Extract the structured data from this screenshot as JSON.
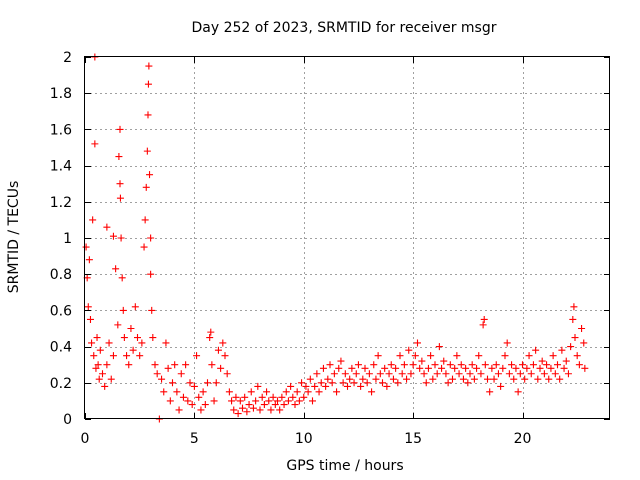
{
  "chart_data": {
    "type": "scatter",
    "title": "Day 252 of 2023, SRMTID for receiver msgr",
    "xlabel": "GPS time / hours",
    "ylabel": "SRMTID / TECUs",
    "xlim": [
      0,
      24
    ],
    "ylim": [
      0,
      2
    ],
    "x_ticks": [
      0,
      5,
      10,
      15,
      20
    ],
    "x_tick_labels": [
      "0",
      "5",
      "10",
      "15",
      "20"
    ],
    "y_ticks": [
      0,
      0.2,
      0.4,
      0.6,
      0.8,
      1,
      1.2,
      1.4,
      1.6,
      1.8,
      2
    ],
    "y_tick_labels": [
      "0",
      "0.2",
      "0.4",
      "0.6",
      "0.8",
      "1",
      "1.2",
      "1.4",
      "1.6",
      "1.8",
      "2"
    ],
    "grid": true,
    "marker": "+",
    "color": "#ff0000",
    "series": [
      {
        "name": "SRMTID",
        "points": [
          [
            0.05,
            0.95
          ],
          [
            0.1,
            0.78
          ],
          [
            0.15,
            0.62
          ],
          [
            0.2,
            0.88
          ],
          [
            0.25,
            0.55
          ],
          [
            0.3,
            0.42
          ],
          [
            0.35,
            1.1
          ],
          [
            0.4,
            0.35
          ],
          [
            0.45,
            2.0
          ],
          [
            0.45,
            1.52
          ],
          [
            0.5,
            0.28
          ],
          [
            0.55,
            0.45
          ],
          [
            0.6,
            0.3
          ],
          [
            0.65,
            0.22
          ],
          [
            0.7,
            0.38
          ],
          [
            0.8,
            0.25
          ],
          [
            0.9,
            0.18
          ],
          [
            1.0,
            1.06
          ],
          [
            1.0,
            0.3
          ],
          [
            1.1,
            0.42
          ],
          [
            1.2,
            0.22
          ],
          [
            1.3,
            1.01
          ],
          [
            1.3,
            0.35
          ],
          [
            1.4,
            0.83
          ],
          [
            1.5,
            0.52
          ],
          [
            1.55,
            1.45
          ],
          [
            1.6,
            1.6
          ],
          [
            1.6,
            1.3
          ],
          [
            1.62,
            1.22
          ],
          [
            1.65,
            1.0
          ],
          [
            1.7,
            0.78
          ],
          [
            1.75,
            0.6
          ],
          [
            1.8,
            0.45
          ],
          [
            1.9,
            0.35
          ],
          [
            2.0,
            0.3
          ],
          [
            2.1,
            0.5
          ],
          [
            2.2,
            0.38
          ],
          [
            2.3,
            0.62
          ],
          [
            2.4,
            0.45
          ],
          [
            2.5,
            0.35
          ],
          [
            2.6,
            0.42
          ],
          [
            2.7,
            0.95
          ],
          [
            2.75,
            1.1
          ],
          [
            2.8,
            1.28
          ],
          [
            2.85,
            1.48
          ],
          [
            2.88,
            1.68
          ],
          [
            2.9,
            1.85
          ],
          [
            2.92,
            1.95
          ],
          [
            2.95,
            1.35
          ],
          [
            3.0,
            1.0
          ],
          [
            3.0,
            0.8
          ],
          [
            3.05,
            0.6
          ],
          [
            3.1,
            0.45
          ],
          [
            3.2,
            0.3
          ],
          [
            3.3,
            0.25
          ],
          [
            3.4,
            0.0
          ],
          [
            3.5,
            0.22
          ],
          [
            3.6,
            0.15
          ],
          [
            3.7,
            0.42
          ],
          [
            3.8,
            0.28
          ],
          [
            3.9,
            0.1
          ],
          [
            4.0,
            0.2
          ],
          [
            4.1,
            0.3
          ],
          [
            4.2,
            0.15
          ],
          [
            4.3,
            0.05
          ],
          [
            4.4,
            0.25
          ],
          [
            4.5,
            0.12
          ],
          [
            4.6,
            0.3
          ],
          [
            4.7,
            0.1
          ],
          [
            4.8,
            0.2
          ],
          [
            4.9,
            0.08
          ],
          [
            5.0,
            0.18
          ],
          [
            5.1,
            0.35
          ],
          [
            5.2,
            0.12
          ],
          [
            5.3,
            0.05
          ],
          [
            5.4,
            0.15
          ],
          [
            5.5,
            0.08
          ],
          [
            5.6,
            0.2
          ],
          [
            5.7,
            0.45
          ],
          [
            5.75,
            0.48
          ],
          [
            5.8,
            0.3
          ],
          [
            5.9,
            0.1
          ],
          [
            6.0,
            0.2
          ],
          [
            6.1,
            0.38
          ],
          [
            6.2,
            0.28
          ],
          [
            6.3,
            0.42
          ],
          [
            6.4,
            0.35
          ],
          [
            6.5,
            0.25
          ],
          [
            6.6,
            0.15
          ],
          [
            6.7,
            0.1
          ],
          [
            6.8,
            0.05
          ],
          [
            6.9,
            0.12
          ],
          [
            7.0,
            0.03
          ],
          [
            7.1,
            0.1
          ],
          [
            7.2,
            0.06
          ],
          [
            7.3,
            0.12
          ],
          [
            7.4,
            0.04
          ],
          [
            7.5,
            0.08
          ],
          [
            7.6,
            0.15
          ],
          [
            7.7,
            0.06
          ],
          [
            7.8,
            0.1
          ],
          [
            7.9,
            0.18
          ],
          [
            8.0,
            0.05
          ],
          [
            8.1,
            0.12
          ],
          [
            8.2,
            0.08
          ],
          [
            8.3,
            0.15
          ],
          [
            8.4,
            0.1
          ],
          [
            8.5,
            0.05
          ],
          [
            8.6,
            0.12
          ],
          [
            8.7,
            0.08
          ],
          [
            8.8,
            0.1
          ],
          [
            8.9,
            0.05
          ],
          [
            9.0,
            0.12
          ],
          [
            9.1,
            0.08
          ],
          [
            9.2,
            0.15
          ],
          [
            9.3,
            0.1
          ],
          [
            9.4,
            0.18
          ],
          [
            9.5,
            0.12
          ],
          [
            9.6,
            0.08
          ],
          [
            9.7,
            0.15
          ],
          [
            9.8,
            0.1
          ],
          [
            9.9,
            0.2
          ],
          [
            10.0,
            0.12
          ],
          [
            10.1,
            0.18
          ],
          [
            10.2,
            0.15
          ],
          [
            10.3,
            0.22
          ],
          [
            10.4,
            0.1
          ],
          [
            10.5,
            0.18
          ],
          [
            10.6,
            0.25
          ],
          [
            10.7,
            0.15
          ],
          [
            10.8,
            0.2
          ],
          [
            10.9,
            0.28
          ],
          [
            11.0,
            0.18
          ],
          [
            11.1,
            0.22
          ],
          [
            11.2,
            0.3
          ],
          [
            11.3,
            0.2
          ],
          [
            11.4,
            0.25
          ],
          [
            11.5,
            0.15
          ],
          [
            11.6,
            0.28
          ],
          [
            11.7,
            0.32
          ],
          [
            11.8,
            0.2
          ],
          [
            11.9,
            0.25
          ],
          [
            12.0,
            0.18
          ],
          [
            12.1,
            0.22
          ],
          [
            12.2,
            0.28
          ],
          [
            12.3,
            0.2
          ],
          [
            12.4,
            0.25
          ],
          [
            12.5,
            0.3
          ],
          [
            12.6,
            0.18
          ],
          [
            12.7,
            0.22
          ],
          [
            12.8,
            0.28
          ],
          [
            12.9,
            0.2
          ],
          [
            13.0,
            0.25
          ],
          [
            13.1,
            0.15
          ],
          [
            13.2,
            0.3
          ],
          [
            13.3,
            0.22
          ],
          [
            13.4,
            0.35
          ],
          [
            13.5,
            0.25
          ],
          [
            13.6,
            0.2
          ],
          [
            13.7,
            0.28
          ],
          [
            13.8,
            0.18
          ],
          [
            13.9,
            0.25
          ],
          [
            14.0,
            0.3
          ],
          [
            14.1,
            0.22
          ],
          [
            14.2,
            0.28
          ],
          [
            14.3,
            0.2
          ],
          [
            14.4,
            0.35
          ],
          [
            14.5,
            0.25
          ],
          [
            14.6,
            0.3
          ],
          [
            14.7,
            0.22
          ],
          [
            14.8,
            0.38
          ],
          [
            14.9,
            0.25
          ],
          [
            15.0,
            0.3
          ],
          [
            15.1,
            0.35
          ],
          [
            15.2,
            0.42
          ],
          [
            15.3,
            0.28
          ],
          [
            15.4,
            0.32
          ],
          [
            15.5,
            0.25
          ],
          [
            15.6,
            0.2
          ],
          [
            15.7,
            0.28
          ],
          [
            15.8,
            0.35
          ],
          [
            15.9,
            0.22
          ],
          [
            16.0,
            0.3
          ],
          [
            16.1,
            0.25
          ],
          [
            16.2,
            0.4
          ],
          [
            16.3,
            0.28
          ],
          [
            16.4,
            0.32
          ],
          [
            16.5,
            0.25
          ],
          [
            16.6,
            0.2
          ],
          [
            16.7,
            0.3
          ],
          [
            16.8,
            0.22
          ],
          [
            16.9,
            0.28
          ],
          [
            17.0,
            0.35
          ],
          [
            17.1,
            0.25
          ],
          [
            17.2,
            0.3
          ],
          [
            17.3,
            0.22
          ],
          [
            17.4,
            0.28
          ],
          [
            17.5,
            0.2
          ],
          [
            17.6,
            0.25
          ],
          [
            17.7,
            0.3
          ],
          [
            17.8,
            0.22
          ],
          [
            17.9,
            0.28
          ],
          [
            18.0,
            0.35
          ],
          [
            18.1,
            0.25
          ],
          [
            18.2,
            0.52
          ],
          [
            18.25,
            0.55
          ],
          [
            18.3,
            0.3
          ],
          [
            18.4,
            0.22
          ],
          [
            18.5,
            0.15
          ],
          [
            18.6,
            0.28
          ],
          [
            18.7,
            0.22
          ],
          [
            18.8,
            0.3
          ],
          [
            18.9,
            0.25
          ],
          [
            19.0,
            0.18
          ],
          [
            19.1,
            0.28
          ],
          [
            19.2,
            0.35
          ],
          [
            19.3,
            0.42
          ],
          [
            19.4,
            0.25
          ],
          [
            19.5,
            0.3
          ],
          [
            19.6,
            0.22
          ],
          [
            19.7,
            0.28
          ],
          [
            19.8,
            0.15
          ],
          [
            19.9,
            0.25
          ],
          [
            20.0,
            0.3
          ],
          [
            20.1,
            0.22
          ],
          [
            20.2,
            0.28
          ],
          [
            20.3,
            0.35
          ],
          [
            20.4,
            0.25
          ],
          [
            20.5,
            0.3
          ],
          [
            20.6,
            0.38
          ],
          [
            20.7,
            0.22
          ],
          [
            20.8,
            0.28
          ],
          [
            20.9,
            0.32
          ],
          [
            21.0,
            0.25
          ],
          [
            21.1,
            0.3
          ],
          [
            21.2,
            0.22
          ],
          [
            21.3,
            0.28
          ],
          [
            21.4,
            0.35
          ],
          [
            21.5,
            0.25
          ],
          [
            21.6,
            0.3
          ],
          [
            21.7,
            0.22
          ],
          [
            21.8,
            0.38
          ],
          [
            21.9,
            0.28
          ],
          [
            22.0,
            0.32
          ],
          [
            22.1,
            0.25
          ],
          [
            22.2,
            0.4
          ],
          [
            22.3,
            0.55
          ],
          [
            22.35,
            0.62
          ],
          [
            22.4,
            0.45
          ],
          [
            22.5,
            0.35
          ],
          [
            22.6,
            0.3
          ],
          [
            22.7,
            0.5
          ],
          [
            22.8,
            0.42
          ],
          [
            22.85,
            0.28
          ]
        ]
      }
    ]
  }
}
